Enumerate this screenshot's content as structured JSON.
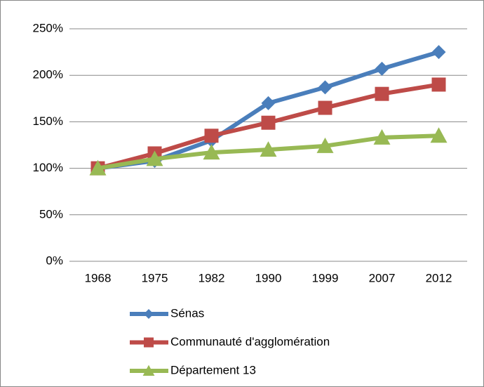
{
  "chart_data": {
    "type": "line",
    "categories": [
      "1968",
      "1975",
      "1982",
      "1990",
      "1999",
      "2007",
      "2012"
    ],
    "series": [
      {
        "name": "Sénas",
        "color": "#4a7ebb",
        "marker": "diamond",
        "values": [
          100,
          108,
          130,
          170,
          187,
          207,
          225
        ]
      },
      {
        "name": "Communauté d'agglomération",
        "color": "#be4b48",
        "marker": "square",
        "values": [
          100,
          116,
          135,
          149,
          165,
          180,
          190
        ]
      },
      {
        "name": "Département 13",
        "color": "#98b954",
        "marker": "triangle",
        "values": [
          100,
          110,
          117,
          120,
          124,
          133,
          135
        ]
      }
    ],
    "ylim": [
      0,
      250
    ],
    "yticks": [
      {
        "value": 0,
        "label": "0%"
      },
      {
        "value": 50,
        "label": "50%"
      },
      {
        "value": 100,
        "label": "100%"
      },
      {
        "value": 150,
        "label": "150%"
      },
      {
        "value": 200,
        "label": "200%"
      },
      {
        "value": 250,
        "label": "250%"
      }
    ],
    "grid": true,
    "legend": "bottom"
  }
}
